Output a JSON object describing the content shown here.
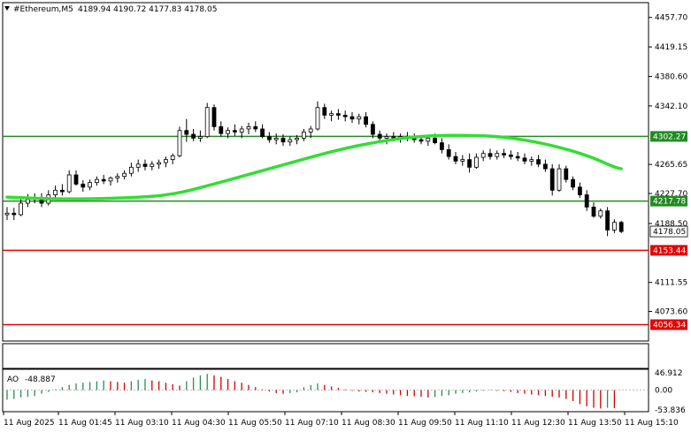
{
  "header": {
    "symbol_text": "#Ethereum,M5",
    "ohlc_text": "4189.94 4190.72 4177.83 4178.05",
    "triangle_icon": "triangle-down-icon"
  },
  "ao_header": {
    "label": "AO",
    "value": "-48.887"
  },
  "colors": {
    "background": "#ffffff",
    "frame": "#000000",
    "candle": "#000000",
    "ma": "#33dd33",
    "level_green": "#228b22",
    "level_red": "#e60000",
    "price_tag": "#000000",
    "ao_up": "#2e8b57",
    "ao_down": "#d00000"
  },
  "chart_data": {
    "type": "candlestick",
    "y_range": [
      4035,
      4477
    ],
    "price_ticks": [
      "4457.70",
      "4419.15",
      "4380.60",
      "4342.10",
      "4265.65",
      "4227.70",
      "4188.50",
      "4111.55",
      "4073.60"
    ],
    "time_ticks": [
      "11 Aug 2025",
      "11 Aug 01:45",
      "11 Aug 03:10",
      "11 Aug 04:30",
      "11 Aug 05:50",
      "11 Aug 07:10",
      "11 Aug 08:30",
      "11 Aug 09:50",
      "11 Aug 11:10",
      "11 Aug 12:30",
      "11 Aug 13:50",
      "11 Aug 15:10"
    ],
    "horizontal_levels": [
      {
        "value": 4302.27,
        "label": "4302.27",
        "color": "#228b22"
      },
      {
        "value": 4217.78,
        "label": "4217.78",
        "color": "#228b22"
      },
      {
        "value": 4153.44,
        "label": "4153.44",
        "color": "#e60000"
      },
      {
        "value": 4056.34,
        "label": "4056.34",
        "color": "#e60000"
      }
    ],
    "current_price": {
      "value": 4178.05,
      "label": "4178.05"
    },
    "candles": [
      [
        4200,
        4210,
        4193,
        4202
      ],
      [
        4202,
        4209,
        4193,
        4200
      ],
      [
        4200,
        4220,
        4198,
        4215
      ],
      [
        4215,
        4227,
        4210,
        4220
      ],
      [
        4220,
        4228,
        4215,
        4222
      ],
      [
        4222,
        4228,
        4210,
        4215
      ],
      [
        4215,
        4232,
        4212,
        4226
      ],
      [
        4226,
        4238,
        4222,
        4232
      ],
      [
        4232,
        4240,
        4225,
        4230
      ],
      [
        4230,
        4258,
        4228,
        4252
      ],
      [
        4252,
        4258,
        4238,
        4240
      ],
      [
        4240,
        4245,
        4230,
        4236
      ],
      [
        4236,
        4246,
        4232,
        4242
      ],
      [
        4242,
        4250,
        4238,
        4246
      ],
      [
        4246,
        4252,
        4240,
        4244
      ],
      [
        4244,
        4250,
        4238,
        4248
      ],
      [
        4248,
        4254,
        4242,
        4250
      ],
      [
        4250,
        4258,
        4246,
        4254
      ],
      [
        4254,
        4268,
        4250,
        4262
      ],
      [
        4262,
        4272,
        4256,
        4266
      ],
      [
        4266,
        4272,
        4258,
        4263
      ],
      [
        4263,
        4270,
        4258,
        4266
      ],
      [
        4266,
        4272,
        4260,
        4268
      ],
      [
        4268,
        4276,
        4262,
        4272
      ],
      [
        4272,
        4280,
        4266,
        4277
      ],
      [
        4277,
        4315,
        4275,
        4310
      ],
      [
        4310,
        4325,
        4295,
        4305
      ],
      [
        4305,
        4312,
        4296,
        4300
      ],
      [
        4300,
        4310,
        4295,
        4302
      ],
      [
        4302,
        4346,
        4300,
        4340
      ],
      [
        4340,
        4344,
        4310,
        4315
      ],
      [
        4315,
        4322,
        4302,
        4306
      ],
      [
        4306,
        4314,
        4300,
        4310
      ],
      [
        4310,
        4318,
        4303,
        4308
      ],
      [
        4308,
        4316,
        4300,
        4312
      ],
      [
        4312,
        4320,
        4305,
        4315
      ],
      [
        4315,
        4322,
        4308,
        4312
      ],
      [
        4312,
        4318,
        4300,
        4302
      ],
      [
        4302,
        4308,
        4294,
        4298
      ],
      [
        4298,
        4306,
        4292,
        4300
      ],
      [
        4300,
        4305,
        4290,
        4295
      ],
      [
        4295,
        4302,
        4290,
        4298
      ],
      [
        4298,
        4304,
        4292,
        4300
      ],
      [
        4300,
        4312,
        4296,
        4308
      ],
      [
        4308,
        4316,
        4300,
        4312
      ],
      [
        4312,
        4348,
        4310,
        4340
      ],
      [
        4340,
        4345,
        4325,
        4330
      ],
      [
        4330,
        4336,
        4322,
        4332
      ],
      [
        4332,
        4338,
        4324,
        4330
      ],
      [
        4330,
        4336,
        4322,
        4328
      ],
      [
        4328,
        4334,
        4320,
        4325
      ],
      [
        4325,
        4332,
        4318,
        4328
      ],
      [
        4328,
        4334,
        4314,
        4318
      ],
      [
        4318,
        4322,
        4300,
        4305
      ],
      [
        4305,
        4310,
        4296,
        4300
      ],
      [
        4300,
        4306,
        4292,
        4302
      ],
      [
        4302,
        4308,
        4296,
        4300
      ],
      [
        4300,
        4306,
        4294,
        4302
      ],
      [
        4302,
        4308,
        4296,
        4300
      ],
      [
        4300,
        4306,
        4294,
        4298
      ],
      [
        4298,
        4304,
        4292,
        4296
      ],
      [
        4296,
        4302,
        4290,
        4300
      ],
      [
        4300,
        4306,
        4292,
        4294
      ],
      [
        4294,
        4300,
        4280,
        4285
      ],
      [
        4285,
        4292,
        4272,
        4276
      ],
      [
        4276,
        4282,
        4266,
        4270
      ],
      [
        4270,
        4278,
        4264,
        4272
      ],
      [
        4272,
        4280,
        4255,
        4262
      ],
      [
        4262,
        4280,
        4260,
        4275
      ],
      [
        4275,
        4284,
        4270,
        4280
      ],
      [
        4280,
        4286,
        4272,
        4276
      ],
      [
        4276,
        4284,
        4272,
        4280
      ],
      [
        4280,
        4286,
        4274,
        4278
      ],
      [
        4278,
        4284,
        4272,
        4276
      ],
      [
        4276,
        4282,
        4270,
        4274
      ],
      [
        4274,
        4280,
        4266,
        4270
      ],
      [
        4270,
        4276,
        4264,
        4272
      ],
      [
        4272,
        4278,
        4262,
        4266
      ],
      [
        4266,
        4272,
        4256,
        4260
      ],
      [
        4260,
        4266,
        4225,
        4232
      ],
      [
        4232,
        4266,
        4230,
        4260
      ],
      [
        4260,
        4264,
        4242,
        4246
      ],
      [
        4246,
        4250,
        4232,
        4236
      ],
      [
        4236,
        4242,
        4222,
        4226
      ],
      [
        4226,
        4232,
        4205,
        4210
      ],
      [
        4210,
        4216,
        4196,
        4198
      ],
      [
        4198,
        4208,
        4195,
        4205
      ],
      [
        4205,
        4210,
        4172,
        4180
      ],
      [
        4180,
        4194,
        4176,
        4190
      ],
      [
        4190,
        4192,
        4176,
        4178
      ]
    ],
    "ma_line": [
      [
        0,
        4223
      ],
      [
        8,
        4220
      ],
      [
        18,
        4222
      ],
      [
        24,
        4226
      ],
      [
        30,
        4240
      ],
      [
        36,
        4255
      ],
      [
        42,
        4270
      ],
      [
        48,
        4285
      ],
      [
        54,
        4296
      ],
      [
        60,
        4303
      ],
      [
        66,
        4304
      ],
      [
        72,
        4302
      ],
      [
        78,
        4293
      ],
      [
        84,
        4278
      ],
      [
        88,
        4262
      ],
      [
        89,
        4260
      ]
    ],
    "ao": {
      "label": "AO",
      "value": -48.887,
      "y_range": [
        -53.836,
        46.912
      ],
      "ticks": [
        "46.912",
        "0.00",
        "-53.836"
      ],
      "bars": [
        -26,
        -24,
        -20,
        -18,
        -16,
        -10,
        -5,
        2,
        8,
        14,
        18,
        20,
        22,
        24,
        26,
        24,
        22,
        20,
        24,
        28,
        30,
        26,
        24,
        20,
        16,
        12,
        24,
        34,
        40,
        44,
        40,
        36,
        30,
        24,
        20,
        14,
        8,
        2,
        -4,
        -8,
        -10,
        -8,
        -6,
        8,
        14,
        18,
        14,
        10,
        6,
        2,
        -2,
        -4,
        -5,
        -6,
        -8,
        -10,
        -12,
        -14,
        -16,
        -17,
        -18,
        -20,
        -19,
        -16,
        -14,
        -10,
        -8,
        -6,
        -4,
        -2,
        -1,
        -2,
        -3,
        -5,
        -8,
        -10,
        -12,
        -14,
        -16,
        -18,
        -20,
        -24,
        -30,
        -38,
        -44,
        -48,
        -50,
        -48,
        -49
      ]
    }
  }
}
